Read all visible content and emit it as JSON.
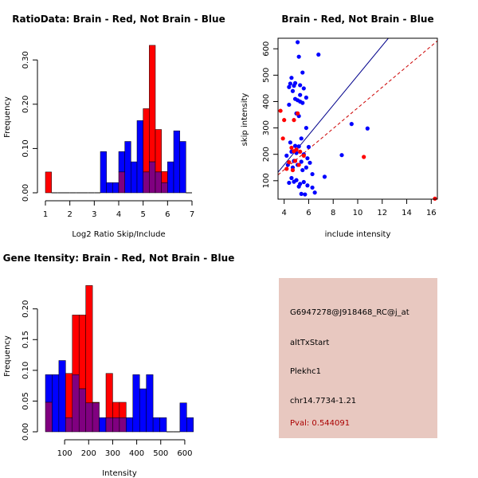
{
  "chart_data": [
    {
      "type": "histogram",
      "title": "RatioData: Brain - Red, Not Brain - Blue",
      "xlabel": "Log2 Ratio Skip/Include",
      "ylabel": "Frequency",
      "xlim": [
        1,
        7
      ],
      "ylim": [
        0,
        0.34
      ],
      "xticks": [
        "1",
        "2",
        "3",
        "4",
        "5",
        "6",
        "7"
      ],
      "yticks": [
        "0.00",
        "0.10",
        "0.20",
        "0.30"
      ],
      "bin_start": 1.0,
      "bin_width": 0.25,
      "series": [
        {
          "name": "Brain",
          "color": "#ff0000",
          "values": [
            0.047,
            0,
            0,
            0,
            0,
            0,
            0,
            0,
            0,
            0,
            0,
            0,
            0.047,
            0,
            0,
            0,
            0.19,
            0.333,
            0.143,
            0.048,
            0,
            0,
            0,
            0
          ]
        },
        {
          "name": "Not Brain",
          "color": "#0000ff",
          "values": [
            0,
            0,
            0,
            0,
            0,
            0,
            0,
            0,
            0,
            0.093,
            0.023,
            0.023,
            0.093,
            0.116,
            0.07,
            0.163,
            0.047,
            0.07,
            0.047,
            0.023,
            0.07,
            0.14,
            0.116,
            0
          ]
        }
      ],
      "overlap_color": "#800080"
    },
    {
      "type": "scatter",
      "title": "Brain - Red, Not Brain - Blue",
      "xlabel": "include intensity",
      "ylabel": "skip intensity",
      "xlim": [
        3.5,
        16.5
      ],
      "ylim": [
        30,
        640
      ],
      "xticks": [
        "4",
        "6",
        "8",
        "10",
        "12",
        "14",
        "16"
      ],
      "yticks": [
        "100",
        "200",
        "300",
        "400",
        "500",
        "600"
      ],
      "series": [
        {
          "name": "Not Brain",
          "color": "#0000ff",
          "points": [
            [
              5.1,
              625
            ],
            [
              6.8,
              578
            ],
            [
              5.2,
              570
            ],
            [
              5.5,
              510
            ],
            [
              4.6,
              490
            ],
            [
              4.5,
              468
            ],
            [
              4.8,
              460
            ],
            [
              4.4,
              455
            ],
            [
              4.9,
              470
            ],
            [
              5.3,
              462
            ],
            [
              5.6,
              450
            ],
            [
              4.7,
              440
            ],
            [
              5.3,
              425
            ],
            [
              5.8,
              415
            ],
            [
              4.9,
              410
            ],
            [
              5.1,
              405
            ],
            [
              5.3,
              400
            ],
            [
              5.5,
              395
            ],
            [
              4.4,
              388
            ],
            [
              5.0,
              355
            ],
            [
              5.2,
              345
            ],
            [
              9.5,
              315
            ],
            [
              10.8,
              298
            ],
            [
              5.8,
              300
            ],
            [
              5.4,
              260
            ],
            [
              4.5,
              245
            ],
            [
              4.9,
              232
            ],
            [
              5.2,
              230
            ],
            [
              6.0,
              228
            ],
            [
              4.6,
              210
            ],
            [
              5.0,
              205
            ],
            [
              5.6,
              200
            ],
            [
              4.2,
              195
            ],
            [
              8.7,
              197
            ],
            [
              5.9,
              185
            ],
            [
              4.8,
              175
            ],
            [
              5.4,
              172
            ],
            [
              6.1,
              168
            ],
            [
              4.3,
              160
            ],
            [
              4.7,
              150
            ],
            [
              5.1,
              160
            ],
            [
              5.8,
              150
            ],
            [
              5.5,
              140
            ],
            [
              6.3,
              125
            ],
            [
              7.3,
              115
            ],
            [
              4.6,
              110
            ],
            [
              5.0,
              102
            ],
            [
              4.8,
              96
            ],
            [
              5.6,
              95
            ],
            [
              4.4,
              92
            ],
            [
              5.3,
              88
            ],
            [
              5.9,
              82
            ],
            [
              5.2,
              78
            ],
            [
              6.3,
              74
            ],
            [
              6.5,
              55
            ],
            [
              5.4,
              50
            ],
            [
              5.7,
              48
            ]
          ]
        },
        {
          "name": "Brain",
          "color": "#ff0000",
          "points": [
            [
              3.7,
              365
            ],
            [
              5.1,
              355
            ],
            [
              4.0,
              330
            ],
            [
              4.8,
              330
            ],
            [
              3.9,
              260
            ],
            [
              4.6,
              225
            ],
            [
              5.0,
              218
            ],
            [
              4.8,
              212
            ],
            [
              5.3,
              210
            ],
            [
              5.6,
              195
            ],
            [
              4.4,
              170
            ],
            [
              4.9,
              175
            ],
            [
              5.2,
              160
            ],
            [
              4.2,
              145
            ],
            [
              4.7,
              140
            ],
            [
              10.5,
              190
            ],
            [
              16.3,
              32
            ]
          ]
        }
      ],
      "lines": [
        {
          "name": "Not Brain fit",
          "color": "#00008b",
          "style": "solid",
          "from": [
            3.5,
            132
          ],
          "to": [
            12.5,
            640
          ]
        },
        {
          "name": "Brain fit",
          "color": "#cc0000",
          "style": "dashed",
          "from": [
            3.5,
            122
          ],
          "to": [
            16.5,
            630
          ]
        }
      ]
    },
    {
      "type": "histogram",
      "title": "Gene Itensity: Brain - Red, Not Brain - Blue",
      "xlabel": "Intensity",
      "ylabel": "Frequency",
      "xlim": [
        20,
        650
      ],
      "ylim": [
        0,
        0.245
      ],
      "xticks": [
        "100",
        "200",
        "300",
        "400",
        "500",
        "600"
      ],
      "yticks": [
        "0.00",
        "0.05",
        "0.10",
        "0.15",
        "0.20"
      ],
      "bin_start": 20,
      "bin_width": 28,
      "series": [
        {
          "name": "Brain",
          "color": "#ff0000",
          "values": [
            0.048,
            0,
            0,
            0.095,
            0.19,
            0.19,
            0.238,
            0.048,
            0,
            0.095,
            0.048,
            0.048,
            0,
            0,
            0,
            0,
            0,
            0,
            0,
            0,
            0,
            0
          ]
        },
        {
          "name": "Not Brain",
          "color": "#0000ff",
          "values": [
            0.093,
            0.093,
            0.116,
            0.023,
            0.093,
            0.07,
            0.047,
            0.047,
            0.023,
            0.023,
            0.023,
            0.023,
            0.023,
            0.093,
            0.07,
            0.093,
            0.023,
            0.023,
            0,
            0,
            0.047,
            0.023
          ]
        }
      ],
      "overlap_color": "#800080"
    }
  ],
  "info_panel": {
    "probe_id": "G6947278@J918468_RC@j_at",
    "event_type": "altTxStart",
    "gene_symbol": "Plekhc1",
    "location": "chr14.7734-1.21",
    "pval": "Pval: 0.544091",
    "bg_color": "#e8c8c0",
    "pval_color": "#aa0000"
  }
}
